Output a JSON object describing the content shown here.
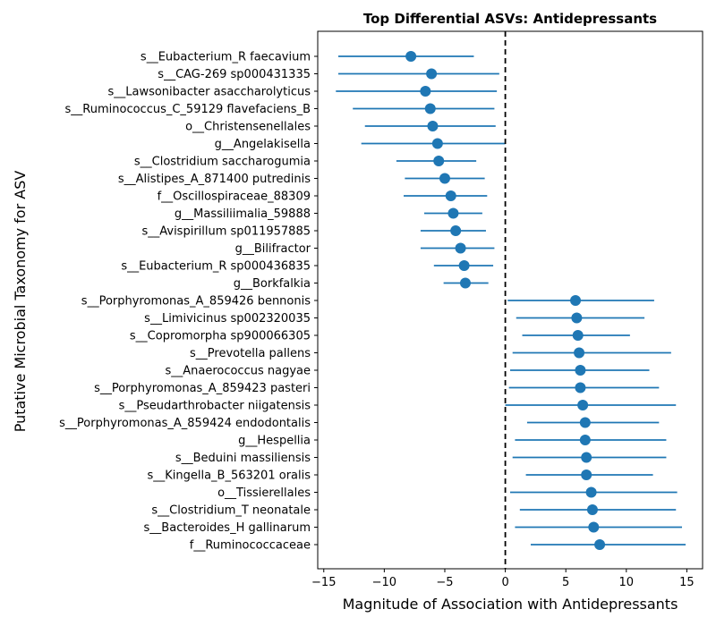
{
  "chart_data": {
    "type": "scatter",
    "subtype": "forest-plot-with-error-bars",
    "title": "Top Differential ASVs: Antidepressants",
    "xlabel": "Magnitude of Association with Antidepressants",
    "ylabel": "Putative Microbial Taxonomy for ASV",
    "xlim": [
      -15.5,
      16.3
    ],
    "xticks": [
      -15,
      -10,
      -5,
      0,
      5,
      10,
      15
    ],
    "xtick_labels": [
      "−15",
      "−10",
      "−5",
      "0",
      "5",
      "10",
      "15"
    ],
    "reference_line": {
      "x": 0,
      "style": "dashed",
      "color": "#000000"
    },
    "grid": false,
    "legend": "none",
    "color": "#1f77b4",
    "categories": [
      "s__Eubacterium_R faecavium",
      "s__CAG-269 sp000431335",
      "s__Lawsonibacter asaccharolyticus",
      "s__Ruminococcus_C_59129 flavefaciens_B",
      "o__Christensenellales",
      "g__Angelakisella",
      "s__Clostridium saccharogumia",
      "s__Alistipes_A_871400 putredinis",
      "f__Oscillospiraceae_88309",
      "g__Massiliimalia_59888",
      "s__Avispirillum sp011957885",
      "g__Bilifractor",
      "s__Eubacterium_R sp000436835",
      "g__Borkfalkia",
      "s__Porphyromonas_A_859426 bennonis",
      "s__Limivicinus sp002320035",
      "s__Copromorpha sp900066305",
      "s__Prevotella pallens",
      "s__Anaerococcus nagyae",
      "s__Porphyromonas_A_859423 pasteri",
      "s__Pseudarthrobacter niigatensis",
      "s__Porphyromonas_A_859424 endodontalis",
      "g__Hespellia",
      "s__Beduini massiliensis",
      "s__Kingella_B_563201 oralis",
      "o__Tissierellales",
      "s__Clostridium_T neonatale",
      "s__Bacteroides_H gallinarum",
      "f__Ruminococcaceae"
    ],
    "values": [
      -7.8,
      -6.1,
      -6.6,
      -6.2,
      -6.0,
      -5.6,
      -5.5,
      -5.0,
      -4.5,
      -4.3,
      -4.1,
      -3.7,
      -3.4,
      -3.3,
      5.8,
      5.9,
      6.0,
      6.1,
      6.2,
      6.2,
      6.4,
      6.6,
      6.6,
      6.7,
      6.7,
      7.1,
      7.2,
      7.3,
      7.8
    ],
    "lower": [
      -13.8,
      -13.8,
      -14.0,
      -12.6,
      -11.6,
      -11.9,
      -9.0,
      -8.3,
      -8.4,
      -6.7,
      -7.0,
      -7.0,
      -5.9,
      -5.1,
      0.2,
      0.9,
      1.4,
      0.6,
      0.4,
      0.3,
      0.0,
      1.8,
      0.8,
      0.6,
      1.7,
      0.4,
      1.2,
      0.8,
      2.1
    ],
    "upper": [
      -2.6,
      -0.5,
      -0.7,
      -0.9,
      -0.8,
      0.0,
      -2.4,
      -1.7,
      -1.5,
      -1.9,
      -1.6,
      -0.9,
      -1.0,
      -1.4,
      12.3,
      11.5,
      10.3,
      13.7,
      11.9,
      12.7,
      14.1,
      12.7,
      13.3,
      13.3,
      12.2,
      14.2,
      14.1,
      14.6,
      14.9
    ]
  }
}
